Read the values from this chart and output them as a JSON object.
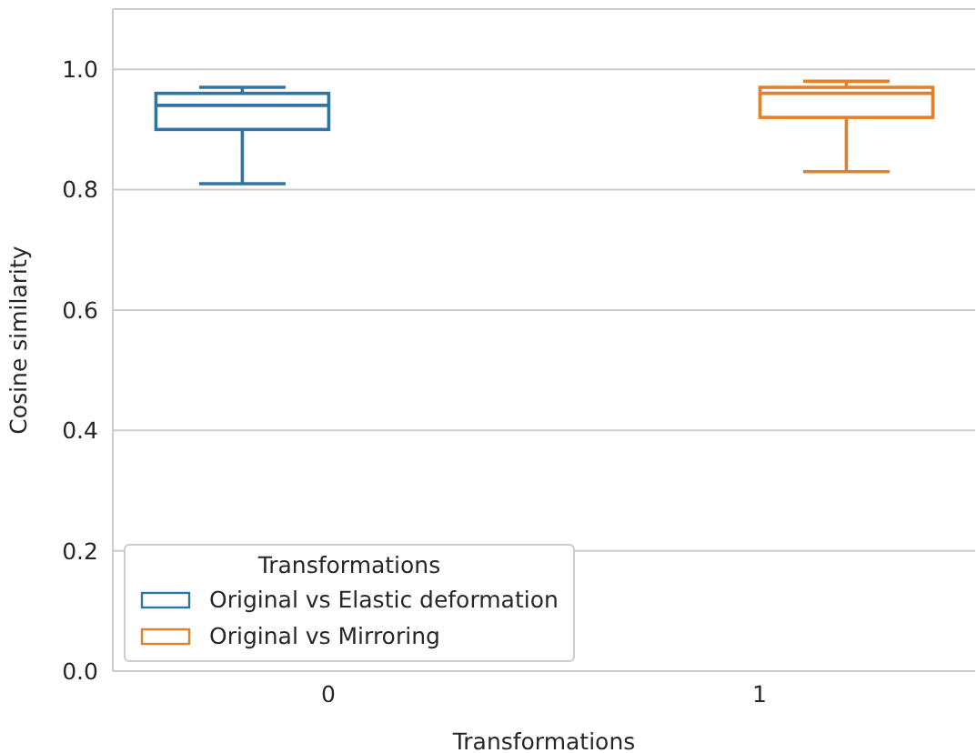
{
  "chart_data": {
    "type": "box",
    "xlabel": "Transformations",
    "ylabel": "Cosine similarity",
    "legend_title": "Transformations",
    "categories": [
      "0",
      "1"
    ],
    "series": [
      {
        "name": "Original vs Elastic deformation",
        "color": "#3274a1",
        "boxes": [
          {
            "low": 0.81,
            "q1": 0.9,
            "median": 0.94,
            "q3": 0.96,
            "high": 0.97
          },
          null
        ]
      },
      {
        "name": "Original vs Mirroring",
        "color": "#e1812c",
        "boxes": [
          null,
          {
            "low": 0.83,
            "q1": 0.92,
            "median": 0.96,
            "q3": 0.97,
            "high": 0.98
          }
        ]
      }
    ],
    "ylim": [
      0,
      1.1
    ],
    "yticks": [
      {
        "value": 0,
        "label": "0.0"
      },
      0.2,
      0.4,
      0.6,
      0.8,
      {
        "value": 1,
        "label": "1.0"
      }
    ],
    "grid": "y",
    "legend": "bottom left"
  }
}
